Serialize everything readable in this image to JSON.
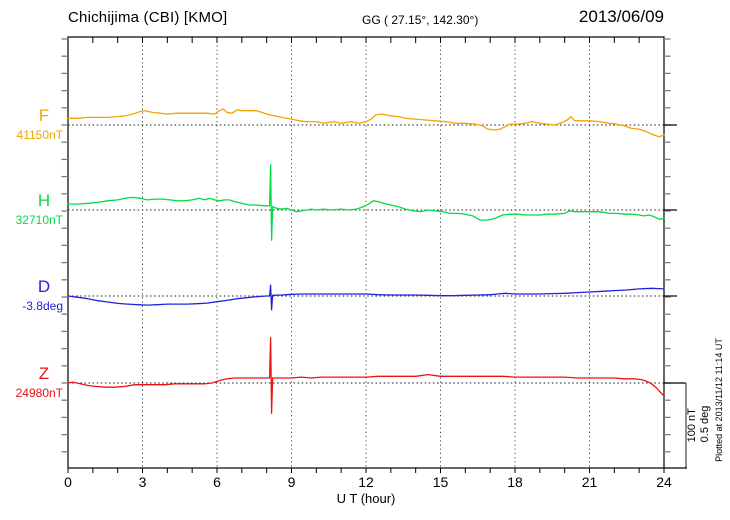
{
  "header": {
    "title": "Chichijima (CBI)  [KMO]",
    "coords": "GG ( 27.15°, 142.30°)",
    "date": "2013/06/09"
  },
  "x_axis": {
    "label": "U T (hour)",
    "tick_labels": [
      "0",
      "3",
      "6",
      "9",
      "12",
      "15",
      "18",
      "21",
      "24"
    ]
  },
  "scale_bar": {
    "nt_label": "100 nT",
    "deg_label": "0.5 deg"
  },
  "plotted_note": "Plotted at 2013/11/12 11:14 UT",
  "components": [
    {
      "id": "F",
      "label": "F",
      "value": "41150nT",
      "color": "#f0a500"
    },
    {
      "id": "H",
      "label": "H",
      "value": "32710nT",
      "color": "#00dd44"
    },
    {
      "id": "D",
      "label": "D",
      "value": "-3.8deg",
      "color": "#2222dd"
    },
    {
      "id": "Z",
      "label": "Z",
      "value": "24980nT",
      "color": "#ee1111"
    }
  ],
  "chart_data": {
    "type": "line",
    "title": "Geomagnetic field 1-day variation, Chichijima (CBI) [KMO], 2013/06/09",
    "xlabel": "U T (hour)",
    "xlim": [
      0,
      24
    ],
    "x_ticks": [
      0,
      3,
      6,
      9,
      12,
      15,
      18,
      21,
      24
    ],
    "grid": "vertical-dotted-every-3h, dotted baseline per component",
    "legend_position": "left-margin component labels",
    "scale": {
      "nT_per_division": 100,
      "deg_per_division": 0.5
    },
    "series": [
      {
        "name": "F",
        "unit": "nT",
        "baseline": 41150,
        "color": "#f0a500",
        "points": [
          [
            0,
            8
          ],
          [
            0.4,
            8
          ],
          [
            0.8,
            9
          ],
          [
            1.2,
            9
          ],
          [
            1.6,
            9
          ],
          [
            2,
            10
          ],
          [
            2.3,
            11
          ],
          [
            2.6,
            13
          ],
          [
            2.9,
            16
          ],
          [
            3.1,
            17
          ],
          [
            3.4,
            15
          ],
          [
            3.7,
            14
          ],
          [
            4,
            13
          ],
          [
            4.4,
            14
          ],
          [
            4.8,
            14
          ],
          [
            5.2,
            14
          ],
          [
            5.6,
            14
          ],
          [
            5.9,
            13
          ],
          [
            6.1,
            17
          ],
          [
            6.25,
            19
          ],
          [
            6.4,
            15
          ],
          [
            6.6,
            14
          ],
          [
            6.8,
            18
          ],
          [
            7,
            17
          ],
          [
            7.3,
            17
          ],
          [
            7.6,
            17
          ],
          [
            7.8,
            15
          ],
          [
            8,
            13
          ],
          [
            8.3,
            11
          ],
          [
            8.6,
            9
          ],
          [
            9,
            7
          ],
          [
            9.3,
            5
          ],
          [
            9.6,
            4
          ],
          [
            10,
            4
          ],
          [
            10.3,
            2
          ],
          [
            10.7,
            4
          ],
          [
            11,
            2
          ],
          [
            11.4,
            4
          ],
          [
            11.7,
            2
          ],
          [
            12,
            4
          ],
          [
            12.2,
            7
          ],
          [
            12.4,
            12
          ],
          [
            12.6,
            13
          ],
          [
            12.8,
            12
          ],
          [
            13,
            11
          ],
          [
            13.3,
            10
          ],
          [
            13.6,
            8
          ],
          [
            14,
            7
          ],
          [
            14.4,
            6
          ],
          [
            14.8,
            5
          ],
          [
            15.2,
            4
          ],
          [
            15.6,
            2
          ],
          [
            16,
            2
          ],
          [
            16.4,
            1
          ],
          [
            16.7,
            -1
          ],
          [
            16.9,
            -5
          ],
          [
            17.2,
            -6
          ],
          [
            17.4,
            -5
          ],
          [
            17.6,
            -2
          ],
          [
            17.8,
            1
          ],
          [
            18.1,
            1
          ],
          [
            18.4,
            2
          ],
          [
            18.7,
            4
          ],
          [
            19,
            2
          ],
          [
            19.3,
            1
          ],
          [
            19.6,
            0
          ],
          [
            19.9,
            3
          ],
          [
            20.1,
            6
          ],
          [
            20.25,
            10
          ],
          [
            20.4,
            5
          ],
          [
            20.7,
            5
          ],
          [
            21,
            5
          ],
          [
            21.4,
            4
          ],
          [
            21.8,
            2
          ],
          [
            22.1,
            1
          ],
          [
            22.4,
            -1
          ],
          [
            22.7,
            -4
          ],
          [
            23,
            -5
          ],
          [
            23.3,
            -8
          ],
          [
            23.6,
            -12
          ],
          [
            23.8,
            -14
          ],
          [
            23.9,
            -13
          ],
          [
            24,
            -12
          ]
        ]
      },
      {
        "name": "H",
        "unit": "nT",
        "baseline": 32710,
        "color": "#00dd44",
        "points": [
          [
            0,
            7
          ],
          [
            0.4,
            7
          ],
          [
            0.8,
            8
          ],
          [
            1.2,
            9
          ],
          [
            1.6,
            11
          ],
          [
            2,
            12
          ],
          [
            2.3,
            14
          ],
          [
            2.6,
            15
          ],
          [
            2.9,
            14
          ],
          [
            3.2,
            12
          ],
          [
            3.5,
            13
          ],
          [
            3.8,
            13
          ],
          [
            4.1,
            12
          ],
          [
            4.4,
            11
          ],
          [
            4.7,
            11
          ],
          [
            5,
            12
          ],
          [
            5.3,
            14
          ],
          [
            5.5,
            12
          ],
          [
            5.7,
            14
          ],
          [
            5.9,
            12
          ],
          [
            6.1,
            11
          ],
          [
            6.3,
            12
          ],
          [
            6.5,
            12
          ],
          [
            6.7,
            10
          ],
          [
            7,
            8
          ],
          [
            7.3,
            6
          ],
          [
            7.6,
            6
          ],
          [
            7.9,
            5
          ],
          [
            8.12,
            5
          ],
          [
            8.16,
            54
          ],
          [
            8.2,
            -36
          ],
          [
            8.24,
            4
          ],
          [
            8.4,
            2
          ],
          [
            8.6,
            1
          ],
          [
            8.8,
            2
          ],
          [
            9,
            0
          ],
          [
            9.2,
            -2
          ],
          [
            9.4,
            -1
          ],
          [
            9.6,
            0
          ],
          [
            9.8,
            1
          ],
          [
            10,
            0
          ],
          [
            10.3,
            1
          ],
          [
            10.6,
            0
          ],
          [
            11,
            1
          ],
          [
            11.3,
            0
          ],
          [
            11.6,
            1
          ],
          [
            11.9,
            4
          ],
          [
            12.1,
            7
          ],
          [
            12.3,
            11
          ],
          [
            12.5,
            10
          ],
          [
            12.7,
            8
          ],
          [
            13,
            6
          ],
          [
            13.3,
            4
          ],
          [
            13.6,
            1
          ],
          [
            13.9,
            -1
          ],
          [
            14.2,
            -2
          ],
          [
            14.5,
            0
          ],
          [
            14.8,
            -1
          ],
          [
            15.1,
            -2
          ],
          [
            15.4,
            -4
          ],
          [
            15.7,
            -4
          ],
          [
            16,
            -5
          ],
          [
            16.3,
            -7
          ],
          [
            16.6,
            -12
          ],
          [
            16.9,
            -12
          ],
          [
            17.2,
            -10
          ],
          [
            17.5,
            -6
          ],
          [
            17.8,
            -5
          ],
          [
            18.1,
            -5
          ],
          [
            18.4,
            -6
          ],
          [
            18.7,
            -6
          ],
          [
            19,
            -6
          ],
          [
            19.3,
            -5
          ],
          [
            19.6,
            -5
          ],
          [
            20,
            -4
          ],
          [
            20.2,
            -1
          ],
          [
            20.4,
            -2
          ],
          [
            20.7,
            -2
          ],
          [
            21,
            -2
          ],
          [
            21.4,
            -2
          ],
          [
            21.8,
            -4
          ],
          [
            22.1,
            -4
          ],
          [
            22.4,
            -5
          ],
          [
            22.7,
            -5
          ],
          [
            23,
            -6
          ],
          [
            23.2,
            -7
          ],
          [
            23.4,
            -6
          ],
          [
            23.6,
            -8
          ],
          [
            23.8,
            -11
          ],
          [
            24,
            -10
          ]
        ]
      },
      {
        "name": "D",
        "unit": "deg",
        "baseline": -3.8,
        "color": "#2222dd",
        "points": [
          [
            0,
            0
          ],
          [
            0.4,
            -0.008
          ],
          [
            0.8,
            -0.016
          ],
          [
            1.2,
            -0.028
          ],
          [
            1.6,
            -0.036
          ],
          [
            2,
            -0.044
          ],
          [
            2.4,
            -0.048
          ],
          [
            2.8,
            -0.052
          ],
          [
            3.2,
            -0.054
          ],
          [
            3.6,
            -0.052
          ],
          [
            4,
            -0.048
          ],
          [
            4.4,
            -0.048
          ],
          [
            4.8,
            -0.048
          ],
          [
            5.2,
            -0.046
          ],
          [
            5.6,
            -0.042
          ],
          [
            6,
            -0.034
          ],
          [
            6.4,
            -0.026
          ],
          [
            6.8,
            -0.016
          ],
          [
            7.2,
            -0.01
          ],
          [
            7.6,
            -0.004
          ],
          [
            8,
            0
          ],
          [
            8.12,
            0
          ],
          [
            8.16,
            0.065
          ],
          [
            8.2,
            -0.083
          ],
          [
            8.24,
            0.004
          ],
          [
            8.6,
            0.006
          ],
          [
            9,
            0.01
          ],
          [
            9.5,
            0.012
          ],
          [
            10,
            0.012
          ],
          [
            10.5,
            0.012
          ],
          [
            11,
            0.012
          ],
          [
            11.5,
            0.012
          ],
          [
            12,
            0.012
          ],
          [
            12.5,
            0.008
          ],
          [
            13,
            0.006
          ],
          [
            13.5,
            0.006
          ],
          [
            14,
            0.006
          ],
          [
            14.5,
            0.004
          ],
          [
            15,
            0.002
          ],
          [
            15.5,
            0.002
          ],
          [
            16,
            0.004
          ],
          [
            16.5,
            0.006
          ],
          [
            17,
            0.008
          ],
          [
            17.3,
            0.012
          ],
          [
            17.6,
            0.016
          ],
          [
            18,
            0.012
          ],
          [
            18.5,
            0.012
          ],
          [
            19,
            0.012
          ],
          [
            19.5,
            0.014
          ],
          [
            20,
            0.016
          ],
          [
            20.5,
            0.02
          ],
          [
            21,
            0.024
          ],
          [
            21.5,
            0.028
          ],
          [
            22,
            0.032
          ],
          [
            22.5,
            0.036
          ],
          [
            23,
            0.042
          ],
          [
            23.5,
            0.046
          ],
          [
            24,
            0.042
          ]
        ]
      },
      {
        "name": "Z",
        "unit": "nT",
        "baseline": 24980,
        "color": "#ee1111",
        "points": [
          [
            0,
            0
          ],
          [
            0.2,
            1
          ],
          [
            0.5,
            -1
          ],
          [
            0.8,
            -3
          ],
          [
            1.1,
            -4
          ],
          [
            1.5,
            -5
          ],
          [
            1.9,
            -5
          ],
          [
            2.3,
            -4
          ],
          [
            2.7,
            -2
          ],
          [
            3.1,
            -2
          ],
          [
            3.5,
            -2
          ],
          [
            3.9,
            -2
          ],
          [
            4.3,
            -1
          ],
          [
            4.7,
            -1
          ],
          [
            5.1,
            -1
          ],
          [
            5.5,
            -1
          ],
          [
            5.8,
            0
          ],
          [
            6.1,
            3
          ],
          [
            6.4,
            5
          ],
          [
            6.7,
            6
          ],
          [
            7,
            6
          ],
          [
            7.4,
            6
          ],
          [
            7.8,
            6
          ],
          [
            8.12,
            6
          ],
          [
            8.16,
            54
          ],
          [
            8.2,
            -36
          ],
          [
            8.24,
            6
          ],
          [
            8.6,
            6
          ],
          [
            9,
            6
          ],
          [
            9.4,
            7
          ],
          [
            9.8,
            6
          ],
          [
            10.2,
            7
          ],
          [
            10.6,
            7
          ],
          [
            11,
            7
          ],
          [
            11.5,
            7
          ],
          [
            12,
            7
          ],
          [
            12.5,
            8
          ],
          [
            13,
            8
          ],
          [
            13.5,
            8
          ],
          [
            14,
            8
          ],
          [
            14.5,
            10
          ],
          [
            15,
            8
          ],
          [
            15.5,
            8
          ],
          [
            16,
            8
          ],
          [
            16.5,
            8
          ],
          [
            17,
            8
          ],
          [
            17.5,
            8
          ],
          [
            18,
            7
          ],
          [
            18.5,
            7
          ],
          [
            19,
            7
          ],
          [
            19.5,
            7
          ],
          [
            20,
            7
          ],
          [
            20.5,
            6
          ],
          [
            21,
            6
          ],
          [
            21.5,
            6
          ],
          [
            22,
            6
          ],
          [
            22.4,
            5
          ],
          [
            22.8,
            5
          ],
          [
            23.1,
            4
          ],
          [
            23.3,
            2
          ],
          [
            23.5,
            -1
          ],
          [
            23.7,
            -6
          ],
          [
            23.85,
            -11
          ],
          [
            23.95,
            -14
          ],
          [
            24,
            -13
          ]
        ]
      }
    ]
  }
}
